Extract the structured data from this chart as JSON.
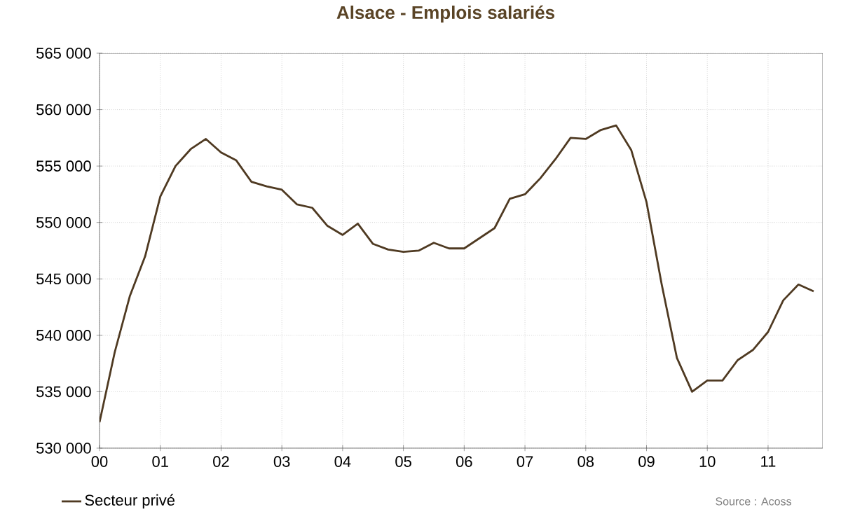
{
  "chart_data": {
    "type": "line",
    "title": "Alsace - Emplois salariés",
    "x": [
      0,
      0.25,
      0.5,
      0.75,
      1,
      1.25,
      1.5,
      1.75,
      2,
      2.25,
      2.5,
      2.75,
      3,
      3.25,
      3.5,
      3.75,
      4,
      4.25,
      4.5,
      4.75,
      5,
      5.25,
      5.5,
      5.75,
      6,
      6.25,
      6.5,
      6.75,
      7,
      7.25,
      7.5,
      7.75,
      8,
      8.25,
      8.5,
      8.75,
      9,
      9.25,
      9.5,
      9.75,
      10,
      10.25,
      10.5,
      10.75,
      11,
      11.25,
      11.5,
      11.75
    ],
    "series": [
      {
        "name": "Secteur privé",
        "color": "#4f3a22",
        "values": [
          532300,
          538500,
          543500,
          547000,
          552300,
          555000,
          556500,
          557400,
          556200,
          555500,
          553600,
          553200,
          552900,
          551600,
          551300,
          549700,
          548900,
          549900,
          548100,
          547600,
          547400,
          547500,
          548200,
          547700,
          547700,
          548600,
          549500,
          552100,
          552500,
          553900,
          555600,
          557500,
          557400,
          558200,
          558600,
          556400,
          551800,
          544500,
          538000,
          535000,
          536000,
          536000,
          537800,
          538700,
          540300,
          543100,
          544500,
          543900
        ]
      }
    ],
    "xlim": [
      0,
      11.9
    ],
    "xticks": [
      {
        "value": 0,
        "label": "00"
      },
      {
        "value": 1,
        "label": "01"
      },
      {
        "value": 2,
        "label": "02"
      },
      {
        "value": 3,
        "label": "03"
      },
      {
        "value": 4,
        "label": "04"
      },
      {
        "value": 5,
        "label": "05"
      },
      {
        "value": 6,
        "label": "06"
      },
      {
        "value": 7,
        "label": "07"
      },
      {
        "value": 8,
        "label": "08"
      },
      {
        "value": 9,
        "label": "09"
      },
      {
        "value": 10,
        "label": "10"
      },
      {
        "value": 11,
        "label": "11"
      }
    ],
    "ylim": [
      530000,
      565000
    ],
    "yticks": [
      {
        "value": 530000,
        "label": "530 000"
      },
      {
        "value": 535000,
        "label": "535 000"
      },
      {
        "value": 540000,
        "label": "540 000"
      },
      {
        "value": 545000,
        "label": "545 000"
      },
      {
        "value": 550000,
        "label": "550 000"
      },
      {
        "value": 555000,
        "label": "555 000"
      },
      {
        "value": 560000,
        "label": "560 000"
      },
      {
        "value": 565000,
        "label": "565 000"
      }
    ],
    "grid": true,
    "legend": "bottom left",
    "line_style": "solid",
    "marker": "none",
    "annotations": [
      "Source : Acoss"
    ]
  }
}
